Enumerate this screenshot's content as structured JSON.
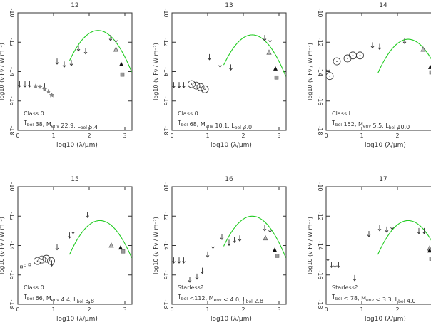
{
  "figure": {
    "xlabel": "log10 (λ/μm)",
    "ylabel": "log10 (ν Fν / W m⁻²)",
    "xlim": [
      0,
      3.2
    ],
    "ylim": [
      -10,
      -18
    ],
    "xticks": [
      "0",
      "1",
      "2",
      "3"
    ],
    "yticks": [
      "-10",
      "-12",
      "-14",
      "-16",
      "-18"
    ]
  },
  "chart_data": [
    {
      "type": "scatter",
      "title": "12",
      "class_label": "Class 0",
      "params_label": "T_bol 38, M_env 22.9, L_bol 5.4",
      "params": {
        "tbol": "38,",
        "menv": "22.9,",
        "lbol": "5.4"
      },
      "upper_limits": [
        [
          0.05,
          -14.85
        ],
        [
          0.2,
          -14.85
        ],
        [
          0.33,
          -14.85
        ],
        [
          0.75,
          -15.0
        ],
        [
          1.1,
          -13.3
        ],
        [
          1.3,
          -13.5
        ],
        [
          1.5,
          -13.4
        ],
        [
          1.7,
          -12.4
        ],
        [
          1.9,
          -12.6
        ],
        [
          2.6,
          -11.7
        ],
        [
          2.75,
          -11.8
        ]
      ],
      "stars": [
        [
          0.5,
          -15.0
        ],
        [
          0.62,
          -15.05
        ],
        [
          0.75,
          -15.2
        ],
        [
          0.86,
          -15.35
        ],
        [
          0.95,
          -15.6
        ]
      ],
      "circles": [],
      "triangles_open": [
        [
          2.75,
          -12.5
        ]
      ],
      "triangles_filled": [
        [
          2.9,
          -13.5
        ]
      ],
      "squares": [
        [
          2.93,
          -14.2
        ]
      ],
      "model_curve": {
        "peak_x": 2.25,
        "peak_y": -11.2
      }
    },
    {
      "type": "scatter",
      "title": "13",
      "class_label": "Class 0",
      "params_label": "T_bol 68, M_env 10.1, L_bol 3.0",
      "params": {
        "tbol": "68,",
        "menv": "10.1,",
        "lbol": "3.0"
      },
      "upper_limits": [
        [
          0.05,
          -14.9
        ],
        [
          0.2,
          -14.9
        ],
        [
          0.33,
          -14.9
        ],
        [
          1.05,
          -13.0
        ],
        [
          1.35,
          -13.5
        ],
        [
          1.65,
          -13.7
        ],
        [
          2.6,
          -11.7
        ],
        [
          2.75,
          -11.8
        ]
      ],
      "stars": [],
      "circles": [
        [
          0.55,
          -14.85
        ],
        [
          0.68,
          -14.95
        ],
        [
          0.8,
          -15.05
        ],
        [
          0.92,
          -15.2
        ]
      ],
      "triangles_open": [
        [
          2.72,
          -12.7
        ]
      ],
      "triangles_filled": [
        [
          2.9,
          -13.8
        ]
      ],
      "squares": [
        [
          2.93,
          -14.4
        ]
      ],
      "model_curve": {
        "peak_x": 2.25,
        "peak_y": -11.5
      }
    },
    {
      "type": "scatter",
      "title": "14",
      "class_label": "Class I",
      "params_label": "T_bol 152, M_env 5.5, L_bol 10.0",
      "params": {
        "tbol": "152,",
        "menv": "5.5,",
        "lbol": "10.0"
      },
      "upper_limits": [
        [
          0.05,
          -13.8
        ],
        [
          1.3,
          -12.2
        ],
        [
          1.5,
          -12.3
        ],
        [
          2.2,
          -11.9
        ]
      ],
      "stars": [],
      "circles": [
        [
          0.1,
          -14.3
        ],
        [
          0.3,
          -13.3
        ],
        [
          0.6,
          -13.1
        ],
        [
          0.75,
          -12.9
        ],
        [
          0.95,
          -12.9
        ]
      ],
      "triangles_open": [
        [
          2.72,
          -12.5
        ]
      ],
      "triangles_filled": [
        [
          2.92,
          -13.7
        ]
      ],
      "squares": [
        [
          2.95,
          -14.05
        ]
      ],
      "model_curve": {
        "peak_x": 2.3,
        "peak_y": -11.8
      }
    },
    {
      "type": "scatter",
      "title": "15",
      "class_label": "Class 0",
      "params_label": "T_bol 66, M_env 4.4, L_bol 3.8",
      "params": {
        "tbol": "66,",
        "menv": "4.4,",
        "lbol": "3.8"
      },
      "upper_limits": [
        [
          0.95,
          -15.2
        ],
        [
          1.1,
          -14.1
        ],
        [
          1.45,
          -13.3
        ],
        [
          1.55,
          -13.0
        ],
        [
          1.95,
          -11.9
        ]
      ],
      "stars": [],
      "circles": [
        [
          0.55,
          -15.05
        ],
        [
          0.68,
          -14.95
        ],
        [
          0.8,
          -14.9
        ],
        [
          0.93,
          -15.05
        ]
      ],
      "squares_open": [
        [
          0.1,
          -15.45
        ],
        [
          0.2,
          -15.35
        ],
        [
          0.33,
          -15.3
        ]
      ],
      "triangles_open": [
        [
          2.62,
          -14.0
        ]
      ],
      "triangles_filled": [
        [
          2.88,
          -14.15
        ]
      ],
      "squares": [
        [
          2.95,
          -14.4
        ]
      ],
      "model_curve": {
        "peak_x": 2.3,
        "peak_y": -12.3
      }
    },
    {
      "type": "scatter",
      "title": "16",
      "class_label": "Starless?",
      "params_label": "T_bol <112, M_env < 4.0, L_bol 2.8",
      "params": {
        "tbol": "<112,",
        "menv": "< 4.0,",
        "lbol": "2.8"
      },
      "upper_limits": [
        [
          0.05,
          -15.0
        ],
        [
          0.2,
          -15.0
        ],
        [
          0.33,
          -15.0
        ],
        [
          0.5,
          -16.3
        ],
        [
          0.7,
          -16.1
        ],
        [
          0.85,
          -15.7
        ],
        [
          1.0,
          -14.6
        ],
        [
          1.15,
          -14.0
        ],
        [
          1.4,
          -13.4
        ],
        [
          1.6,
          -13.8
        ],
        [
          1.75,
          -13.6
        ],
        [
          1.9,
          -13.5
        ],
        [
          2.6,
          -12.8
        ],
        [
          2.75,
          -12.9
        ]
      ],
      "stars": [],
      "circles": [],
      "triangles_open": [
        [
          2.62,
          -13.5
        ]
      ],
      "triangles_filled": [
        [
          2.88,
          -14.3
        ]
      ],
      "squares": [
        [
          2.95,
          -14.7
        ]
      ],
      "model_curve": {
        "peak_x": 2.25,
        "peak_y": -12.0
      }
    },
    {
      "type": "scatter",
      "title": "17",
      "class_label": "Starless?",
      "params_label": "T_bol < 78, M_env < 3.3, L_bol 4.0",
      "params": {
        "tbol": "< 78,",
        "menv": "< 3.3,",
        "lbol": "4.0"
      },
      "upper_limits": [
        [
          0.05,
          -14.85
        ],
        [
          0.15,
          -15.3
        ],
        [
          0.25,
          -15.3
        ],
        [
          0.35,
          -15.3
        ],
        [
          0.8,
          -16.2
        ],
        [
          1.2,
          -13.2
        ],
        [
          1.5,
          -12.8
        ],
        [
          1.7,
          -12.9
        ],
        [
          1.85,
          -12.7
        ],
        [
          2.6,
          -13.0
        ],
        [
          2.75,
          -13.0
        ]
      ],
      "stars": [],
      "circles": [],
      "triangles_open": [
        [
          2.9,
          -14.2
        ]
      ],
      "triangles_filled": [
        [
          2.9,
          -14.35
        ]
      ],
      "squares": [
        [
          2.95,
          -14.9
        ]
      ],
      "model_curve": {
        "peak_x": 2.3,
        "peak_y": -12.3
      }
    }
  ]
}
